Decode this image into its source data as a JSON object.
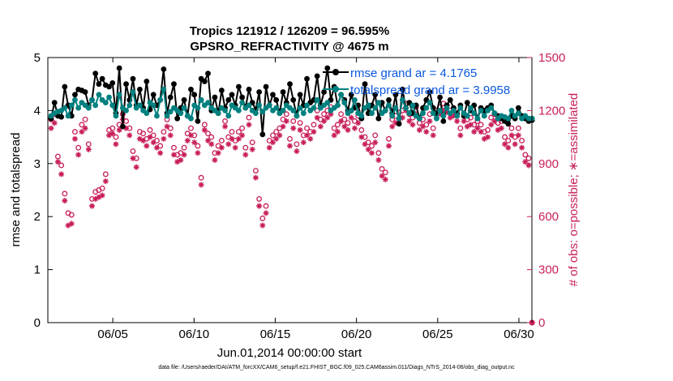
{
  "chart_data": {
    "type": "line",
    "title": "Tropics 121912 / 126209 = 96.595%",
    "subtitle": "GPSRO_REFRACTIVITY @ 4675 m",
    "xlabel": "Jun.01,2014 00:00:00 start",
    "ylabel_left": "rmse and totalspread",
    "ylabel_right": "# of obs: o=possible; ∗=assimilated",
    "x_range_days": [
      0.0,
      29.8
    ],
    "ylim_left": [
      0,
      5
    ],
    "ylim_right": [
      0,
      1500
    ],
    "x_ticks": [
      {
        "day": 4,
        "label": "06/05"
      },
      {
        "day": 9,
        "label": "06/10"
      },
      {
        "day": 14,
        "label": "06/15"
      },
      {
        "day": 19,
        "label": "06/20"
      },
      {
        "day": 24,
        "label": "06/25"
      },
      {
        "day": 29,
        "label": "06/30"
      }
    ],
    "y_ticks_left": [
      0,
      1,
      2,
      3,
      4,
      5
    ],
    "y_ticks_right": [
      0,
      300,
      600,
      900,
      1200,
      1500
    ],
    "legend_position": "top-right",
    "legend": [
      {
        "label": "rmse grand ar = 4.1765",
        "color": "#000000"
      },
      {
        "label": "totalspread grand ar = 3.9958",
        "color": "#00807f"
      }
    ],
    "colors": {
      "rmse": "#000000",
      "spread": "#00807f",
      "obs": "#c81e5a",
      "axis": "#000000"
    },
    "series": [
      {
        "name": "rmse",
        "axis": "left",
        "color": "#000000",
        "values": [
          3.85,
          4.15,
          3.9,
          3.88,
          4.45,
          4.1,
          3.9,
          4.3,
          4.4,
          4.38,
          4.35,
          4.1,
          4.2,
          4.7,
          4.5,
          4.6,
          4.48,
          4.45,
          4.52,
          3.95,
          4.8,
          3.7,
          4.5,
          4.2,
          4.6,
          4.1,
          4.4,
          4.05,
          4.55,
          4.02,
          4.3,
          4.1,
          4.2,
          4.78,
          3.95,
          4.25,
          4.5,
          3.85,
          4.05,
          4.2,
          3.9,
          4.4,
          4.3,
          3.8,
          4.6,
          4.55,
          4.7,
          4.0,
          4.25,
          3.95,
          4.38,
          4.05,
          4.2,
          4.3,
          4.1,
          4.45,
          4.25,
          4.05,
          4.4,
          4.15,
          4.02,
          4.35,
          3.55,
          4.45,
          4.1,
          4.3,
          4.2,
          3.95,
          4.35,
          4.15,
          4.5,
          4.2,
          3.9,
          4.3,
          4.1,
          4.6,
          4.15,
          4.2,
          4.65,
          4.1,
          4.35,
          4.8,
          4.2,
          4.45,
          4.1,
          4.3,
          4.2,
          4.0,
          4.3,
          4.05,
          4.1,
          3.85,
          4.5,
          3.95,
          4.1,
          4.3,
          3.85,
          4.15,
          4.0,
          4.2,
          3.95,
          4.3,
          3.75,
          4.4,
          4.05,
          4.15,
          3.95,
          4.1,
          3.85,
          4.05,
          4.2,
          4.35,
          4.05,
          3.95,
          4.25,
          3.8,
          4.1,
          4.2,
          4.05,
          3.95,
          4.1,
          3.9,
          4.15,
          4.0,
          4.1,
          3.85,
          4.05,
          4.0,
          4.05,
          4.1,
          3.95,
          3.9,
          3.85,
          3.8,
          3.75,
          3.9,
          3.85,
          4.05,
          3.9,
          3.85,
          3.8,
          3.82
        ]
      },
      {
        "name": "totalspread",
        "axis": "left",
        "color": "#00807f",
        "values": [
          3.9,
          3.95,
          3.98,
          4.0,
          4.05,
          3.9,
          4.1,
          4.2,
          4.05,
          4.15,
          4.1,
          4.05,
          4.2,
          4.1,
          4.3,
          4.2,
          4.15,
          4.25,
          4.1,
          3.9,
          4.3,
          4.05,
          4.0,
          4.1,
          4.35,
          4.05,
          4.1,
          4.0,
          3.95,
          4.15,
          4.1,
          3.9,
          4.2,
          4.4,
          3.9,
          3.98,
          4.05,
          4.0,
          3.95,
          4.05,
          3.9,
          3.85,
          4.1,
          4.05,
          4.2,
          4.1,
          4.15,
          4.05,
          4.0,
          3.95,
          4.05,
          4.0,
          3.9,
          4.1,
          4.05,
          4.0,
          4.15,
          4.05,
          4.1,
          4.0,
          3.95,
          4.1,
          3.98,
          4.05,
          4.1,
          4.0,
          4.05,
          3.95,
          4.0,
          4.1,
          4.05,
          4.0,
          3.9,
          4.05,
          3.95,
          4.1,
          4.0,
          4.05,
          4.2,
          4.05,
          4.1,
          4.15,
          4.0,
          4.05,
          4.1,
          4.3,
          4.15,
          3.95,
          4.0,
          4.2,
          3.95,
          3.9,
          4.05,
          4.1,
          3.95,
          4.05,
          4.15,
          3.95,
          4.0,
          4.1,
          3.9,
          4.05,
          3.85,
          4.2,
          4.05,
          3.95,
          4.1,
          3.9,
          3.85,
          3.95,
          4.05,
          4.15,
          3.95,
          3.85,
          4.0,
          3.9,
          4.05,
          3.95,
          4.0,
          3.9,
          4.05,
          3.95,
          3.9,
          4.05,
          3.95,
          3.85,
          4.0,
          3.9,
          4.0,
          4.05,
          3.95,
          3.85,
          3.9,
          3.88,
          3.85,
          4.0,
          3.9,
          3.95,
          3.85,
          3.9,
          3.85,
          3.85
        ]
      },
      {
        "name": "obs_possible",
        "axis": "right",
        "color": "#c81e5a",
        "marker": "circle",
        "values": [
          1150,
          1180,
          940,
          890,
          730,
          620,
          610,
          1080,
          990,
          1120,
          1150,
          1010,
          700,
          740,
          750,
          760,
          840,
          1090,
          1100,
          1050,
          1120,
          1180,
          1140,
          1100,
          970,
          930,
          1080,
          1070,
          1040,
          1090,
          1060,
          1030,
          1000,
          1080,
          1150,
          1100,
          990,
          950,
          960,
          990,
          1070,
          1100,
          1060,
          1000,
          820,
          1120,
          1070,
          1050,
          960,
          1000,
          1030,
          1140,
          1050,
          1080,
          1030,
          1080,
          1100,
          990,
          1160,
          1020,
          860,
          700,
          590,
          660,
          1030,
          1060,
          1080,
          1100,
          1150,
          1180,
          1040,
          1140,
          1010,
          1130,
          1060,
          1100,
          1080,
          1120,
          1200,
          1150,
          1180,
          1200,
          1220,
          1100,
          1120,
          1180,
          1150,
          1130,
          1200,
          1140,
          1170,
          1090,
          1050,
          1020,
          1000,
          1060,
          960,
          870,
          850,
          1040,
          1150,
          1170,
          1190,
          1200,
          1240,
          1180,
          1160,
          1220,
          1130,
          1150,
          1120,
          1180,
          1100,
          1200,
          1220,
          1240,
          1230,
          1200,
          1210,
          1180,
          1100,
          1180,
          1150,
          1160,
          1120,
          1140,
          1120,
          1080,
          1090,
          1160,
          1180,
          1130,
          1140,
          1050,
          1030,
          1100,
          1050,
          1100,
          1030,
          950,
          930,
          0
        ]
      },
      {
        "name": "obs_assimilated",
        "axis": "right",
        "color": "#c81e5a",
        "marker": "star",
        "values": [
          1100,
          1130,
          910,
          840,
          690,
          550,
          560,
          1040,
          950,
          1080,
          1100,
          980,
          660,
          700,
          710,
          720,
          800,
          1060,
          1070,
          1010,
          1090,
          1150,
          1100,
          1060,
          930,
          880,
          1040,
          1030,
          1000,
          1050,
          1020,
          990,
          960,
          1040,
          1110,
          1060,
          950,
          910,
          920,
          950,
          1030,
          1060,
          1020,
          960,
          780,
          1090,
          1030,
          1010,
          920,
          960,
          990,
          1110,
          1010,
          1040,
          990,
          1040,
          1060,
          950,
          1120,
          980,
          820,
          660,
          550,
          620,
          990,
          1020,
          1040,
          1060,
          1110,
          1140,
          1000,
          1100,
          970,
          1090,
          1020,
          1060,
          1040,
          1080,
          1160,
          1110,
          1140,
          1160,
          1180,
          1060,
          1080,
          1140,
          1110,
          1090,
          1160,
          1100,
          1130,
          1050,
          1010,
          980,
          960,
          1020,
          920,
          830,
          810,
          1000,
          1110,
          1130,
          1150,
          1160,
          1200,
          1140,
          1120,
          1180,
          1090,
          1110,
          1080,
          1140,
          1060,
          1160,
          1180,
          1200,
          1190,
          1160,
          1170,
          1140,
          1060,
          1140,
          1110,
          1120,
          1080,
          1100,
          1080,
          1040,
          1050,
          1120,
          1140,
          1090,
          1100,
          1010,
          990,
          1060,
          1010,
          1060,
          990,
          910,
          890,
          0
        ]
      }
    ]
  },
  "footnote": "data file: /Users/raeder/DAI/ATM_forcXX/CAM6_setup/f.e21.FHIST_BGC.f09_025.CAM6assim.011/Diags_NTrS_2014-06/obs_diag_output.nc"
}
